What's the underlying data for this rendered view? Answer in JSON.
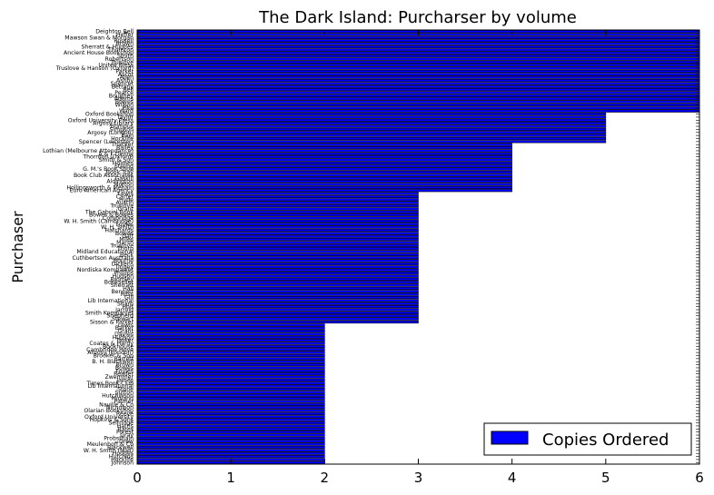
{
  "chart_data": {
    "type": "bar",
    "orientation": "horizontal",
    "title": "The Dark Island: Purcharser by volume",
    "ylabel": "Purchaser",
    "xlabel": "",
    "xlim": [
      0,
      6
    ],
    "xticks": [
      "0",
      "1",
      "2",
      "3",
      "4",
      "5",
      "6"
    ],
    "grid": false,
    "legend": {
      "position": "bottom-right",
      "label": "Copies Ordered"
    },
    "colors": {
      "bar": "#0000ff",
      "bar_edge": "#000000",
      "axes": "#000000"
    },
    "groups": [
      {
        "value": 6,
        "purchasers": [
          "Deighton Bell",
          "Heffer",
          "Mawson Swan & Morgan",
          "Russell",
          "Brown",
          "Sherratt & Hughes",
          "Thornton",
          "Ancient House Bookshop",
          "Smith",
          "Robertson",
          "Truslove",
          "United Press",
          "Truslove & Hanson (Oxford)",
          "Parker",
          "Ascot",
          "Allen",
          "Ashby",
          "Spencer",
          "Bettany",
          "Bell",
          "Pearce",
          "Boughey",
          "Adams",
          "Bowes",
          "Wilson",
          "Pike",
          "Ward"
        ]
      },
      {
        "value": 5,
        "purchasers": [
          "Oxford Bookshop",
          "Taylor",
          "Oxford University Press",
          "Argosy Library",
          "Bumpus",
          "Simpson",
          "Argosy (London)",
          "Bain",
          "Hocklife",
          "Spencer (Leicester)"
        ]
      },
      {
        "value": 4,
        "purchasers": [
          "Thacker",
          "Bailey",
          "Lothian (Melbourne Attendance)",
          "A & F Denny",
          "Thornton (Oxford)",
          "Smith & Son",
          "Holmes",
          "Stilling",
          "G. M.'s Book Shop",
          "Book Tray",
          "Book Club Associates",
          "Gaskill",
          "Aldington",
          "Morton",
          "Hollingsworth & Mehain",
          "Euro American Agency"
        ]
      },
      {
        "value": 3,
        "purchasers": [
          "Lewis",
          "Carter",
          "Hyde",
          "Austin",
          "Truslove",
          "Grant",
          "The Gabriel Book",
          "Bowes & Bowes",
          "Combridge",
          "W. H. Smith (Cambridge)",
          "Foyles",
          "W. H. Smith",
          "Hatchards",
          "Bowes",
          "Galt",
          "Miles",
          "Marsh",
          "Truslove",
          "Thorp",
          "Midland Educational",
          "Beck",
          "Cuthbertson Australia",
          "Bourne",
          "Dickens",
          "Tingey",
          "Nordiska Kompaniet",
          "Phillips",
          "Hudson",
          "Bromley",
          "Bookseller",
          "Sherratt",
          "Hall",
          "Bennett",
          "Ross",
          "Gill",
          "Lib International",
          "Sharp",
          "Holt",
          "Jarrold",
          "Smith Kompaniet",
          "Shepherd",
          "Stewart",
          "Sisson & Parker"
        ]
      },
      {
        "value": 2,
        "purchasers": [
          "Lewis",
          "Barker",
          "Grant",
          "Davies",
          "Hudson",
          "Tasker",
          "Coates & Hardy",
          "Bookhouse",
          "Cambridge Hove",
          "Argosy (London)",
          "Brooker & Son",
          "Barrett",
          "B. H. Blackwell",
          "Brown",
          "Bowes",
          "Foyles",
          "Reader",
          "Zwemmer",
          "James",
          "Times Book Club",
          "Lib International",
          "Stone",
          "Sutton",
          "Hutchinson",
          "Midland",
          "Palmer",
          "Naville & Co",
          "Nicholson",
          "Olarian Bookshop",
          "Reeve",
          "Oxford University",
          "Hopkins & Sons",
          "Selfridge",
          "Harris",
          "Bates",
          "Forest",
          "Gray",
          "Probsthain",
          "Drew",
          "Meulenhoff & Co",
          "Blackwell",
          "W. H. Smith (Mall)",
          "Hodges",
          "Hutchins",
          "Hocklife",
          "Johnson"
        ]
      }
    ]
  }
}
